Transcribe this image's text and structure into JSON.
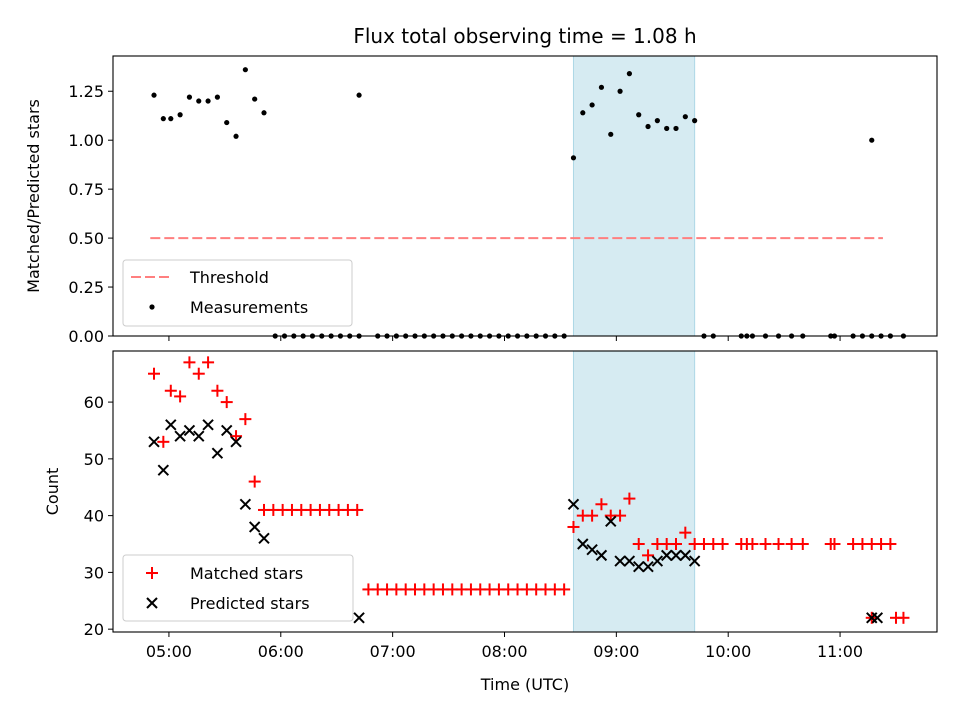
{
  "chart_data": [
    {
      "type": "scatter",
      "title": "Flux total observing time = 1.08 h",
      "xlabel": "",
      "ylabel": "Matched/Predicted stars",
      "ylim": [
        0,
        1.43
      ],
      "yticks": [
        "0.00",
        "0.25",
        "0.50",
        "0.75",
        "1.00",
        "1.25"
      ],
      "highlight_span": {
        "x0": "08:37",
        "x1": "09:42",
        "color": "#add8e6"
      },
      "threshold": {
        "name": "Threshold",
        "y": 0.5,
        "x0": "04:50",
        "x1": "11:23",
        "color": "#ff7f7f",
        "style": "dashed"
      },
      "series": [
        {
          "name": "Measurements",
          "color": "#000000",
          "marker": "dot",
          "points": [
            [
              "04:52",
              1.23
            ],
            [
              "04:57",
              1.11
            ],
            [
              "05:01",
              1.11
            ],
            [
              "05:06",
              1.13
            ],
            [
              "05:11",
              1.22
            ],
            [
              "05:16",
              1.2
            ],
            [
              "05:21",
              1.2
            ],
            [
              "05:26",
              1.22
            ],
            [
              "05:31",
              1.09
            ],
            [
              "05:36",
              1.02
            ],
            [
              "05:41",
              1.36
            ],
            [
              "05:46",
              1.21
            ],
            [
              "05:51",
              1.14
            ],
            [
              "05:57",
              0
            ],
            [
              "06:02",
              0
            ],
            [
              "06:07",
              0
            ],
            [
              "06:12",
              0
            ],
            [
              "06:17",
              0
            ],
            [
              "06:22",
              0
            ],
            [
              "06:27",
              0
            ],
            [
              "06:32",
              0
            ],
            [
              "06:37",
              0
            ],
            [
              "06:42",
              0
            ],
            [
              "06:42",
              1.23
            ],
            [
              "06:52",
              0
            ],
            [
              "06:57",
              0
            ],
            [
              "07:02",
              0
            ],
            [
              "07:07",
              0
            ],
            [
              "07:12",
              0
            ],
            [
              "07:17",
              0
            ],
            [
              "07:22",
              0
            ],
            [
              "07:27",
              0
            ],
            [
              "07:32",
              0
            ],
            [
              "07:37",
              0
            ],
            [
              "07:42",
              0
            ],
            [
              "07:47",
              0
            ],
            [
              "07:52",
              0
            ],
            [
              "07:57",
              0
            ],
            [
              "08:02",
              0
            ],
            [
              "08:07",
              0
            ],
            [
              "08:12",
              0
            ],
            [
              "08:17",
              0
            ],
            [
              "08:22",
              0
            ],
            [
              "08:27",
              0
            ],
            [
              "08:32",
              0
            ],
            [
              "08:37",
              0.91
            ],
            [
              "08:42",
              1.14
            ],
            [
              "08:47",
              1.18
            ],
            [
              "08:52",
              1.27
            ],
            [
              "08:57",
              1.03
            ],
            [
              "09:02",
              1.25
            ],
            [
              "09:07",
              1.34
            ],
            [
              "09:12",
              1.13
            ],
            [
              "09:17",
              1.07
            ],
            [
              "09:22",
              1.1
            ],
            [
              "09:27",
              1.06
            ],
            [
              "09:32",
              1.06
            ],
            [
              "09:37",
              1.12
            ],
            [
              "09:42",
              1.1
            ],
            [
              "09:47",
              0
            ],
            [
              "09:52",
              0
            ],
            [
              "10:07",
              0
            ],
            [
              "10:10",
              0
            ],
            [
              "10:13",
              0
            ],
            [
              "10:20",
              0
            ],
            [
              "10:27",
              0
            ],
            [
              "10:34",
              0
            ],
            [
              "10:40",
              0
            ],
            [
              "10:55",
              0
            ],
            [
              "10:57",
              0
            ],
            [
              "11:07",
              0
            ],
            [
              "11:12",
              0
            ],
            [
              "11:17",
              0
            ],
            [
              "11:22",
              0
            ],
            [
              "11:27",
              0
            ],
            [
              "11:17",
              1.0
            ],
            [
              "11:34",
              0
            ]
          ]
        }
      ],
      "legend": {
        "placement": "lower-left",
        "entries": [
          "Threshold",
          "Measurements"
        ]
      }
    },
    {
      "type": "scatter",
      "xlabel": "Time (UTC)",
      "ylabel": "Count",
      "ylim": [
        19.5,
        69
      ],
      "yticks": [
        "20",
        "30",
        "40",
        "50",
        "60"
      ],
      "xlim": [
        "04:30",
        "11:52"
      ],
      "xticks": [
        "05:00",
        "06:00",
        "07:00",
        "08:00",
        "09:00",
        "10:00",
        "11:00"
      ],
      "highlight_span": {
        "x0": "08:37",
        "x1": "09:42",
        "color": "#add8e6"
      },
      "series": [
        {
          "name": "Matched stars",
          "color": "#ff0000",
          "marker": "plus",
          "points": [
            [
              "04:52",
              65
            ],
            [
              "04:57",
              53
            ],
            [
              "05:01",
              62
            ],
            [
              "05:06",
              61
            ],
            [
              "05:11",
              67
            ],
            [
              "05:16",
              65
            ],
            [
              "05:21",
              67
            ],
            [
              "05:26",
              62
            ],
            [
              "05:31",
              60
            ],
            [
              "05:36",
              54
            ],
            [
              "05:41",
              57
            ],
            [
              "05:46",
              46
            ],
            [
              "05:51",
              41
            ],
            [
              "05:56",
              41
            ],
            [
              "06:01",
              41
            ],
            [
              "06:06",
              41
            ],
            [
              "06:11",
              41
            ],
            [
              "06:16",
              41
            ],
            [
              "06:21",
              41
            ],
            [
              "06:26",
              41
            ],
            [
              "06:31",
              41
            ],
            [
              "06:36",
              41
            ],
            [
              "06:41",
              41
            ],
            [
              "06:47",
              27
            ],
            [
              "06:52",
              27
            ],
            [
              "06:57",
              27
            ],
            [
              "07:02",
              27
            ],
            [
              "07:07",
              27
            ],
            [
              "07:12",
              27
            ],
            [
              "07:17",
              27
            ],
            [
              "07:22",
              27
            ],
            [
              "07:27",
              27
            ],
            [
              "07:32",
              27
            ],
            [
              "07:37",
              27
            ],
            [
              "07:42",
              27
            ],
            [
              "07:47",
              27
            ],
            [
              "07:52",
              27
            ],
            [
              "07:57",
              27
            ],
            [
              "08:02",
              27
            ],
            [
              "08:07",
              27
            ],
            [
              "08:12",
              27
            ],
            [
              "08:17",
              27
            ],
            [
              "08:22",
              27
            ],
            [
              "08:27",
              27
            ],
            [
              "08:32",
              27
            ],
            [
              "08:37",
              38
            ],
            [
              "08:42",
              40
            ],
            [
              "08:47",
              40
            ],
            [
              "08:52",
              42
            ],
            [
              "08:57",
              40
            ],
            [
              "09:02",
              40
            ],
            [
              "09:07",
              43
            ],
            [
              "09:12",
              35
            ],
            [
              "09:17",
              33
            ],
            [
              "09:22",
              35
            ],
            [
              "09:27",
              35
            ],
            [
              "09:32",
              35
            ],
            [
              "09:37",
              37
            ],
            [
              "09:42",
              35
            ],
            [
              "09:47",
              35
            ],
            [
              "09:52",
              35
            ],
            [
              "09:57",
              35
            ],
            [
              "10:07",
              35
            ],
            [
              "10:10",
              35
            ],
            [
              "10:13",
              35
            ],
            [
              "10:20",
              35
            ],
            [
              "10:27",
              35
            ],
            [
              "10:34",
              35
            ],
            [
              "10:40",
              35
            ],
            [
              "10:55",
              35
            ],
            [
              "10:57",
              35
            ],
            [
              "11:07",
              35
            ],
            [
              "11:12",
              35
            ],
            [
              "11:17",
              35
            ],
            [
              "11:22",
              35
            ],
            [
              "11:27",
              35
            ],
            [
              "11:17",
              22
            ],
            [
              "11:30",
              22
            ],
            [
              "11:34",
              22
            ]
          ]
        },
        {
          "name": "Predicted stars",
          "color": "#000000",
          "marker": "cross",
          "points": [
            [
              "04:52",
              53
            ],
            [
              "04:57",
              48
            ],
            [
              "05:01",
              56
            ],
            [
              "05:06",
              54
            ],
            [
              "05:11",
              55
            ],
            [
              "05:16",
              54
            ],
            [
              "05:21",
              56
            ],
            [
              "05:26",
              51
            ],
            [
              "05:31",
              55
            ],
            [
              "05:36",
              53
            ],
            [
              "05:41",
              42
            ],
            [
              "05:46",
              38
            ],
            [
              "05:51",
              36
            ],
            [
              "06:42",
              22
            ],
            [
              "08:37",
              42
            ],
            [
              "08:42",
              35
            ],
            [
              "08:47",
              34
            ],
            [
              "08:52",
              33
            ],
            [
              "08:57",
              39
            ],
            [
              "09:02",
              32
            ],
            [
              "09:07",
              32
            ],
            [
              "09:12",
              31
            ],
            [
              "09:17",
              31
            ],
            [
              "09:22",
              32
            ],
            [
              "09:27",
              33
            ],
            [
              "09:32",
              33
            ],
            [
              "09:37",
              33
            ],
            [
              "09:42",
              32
            ],
            [
              "11:17",
              22
            ],
            [
              "11:20",
              22
            ]
          ]
        }
      ],
      "legend": {
        "placement": "lower-left",
        "entries": [
          "Matched stars",
          "Predicted stars"
        ]
      }
    }
  ]
}
